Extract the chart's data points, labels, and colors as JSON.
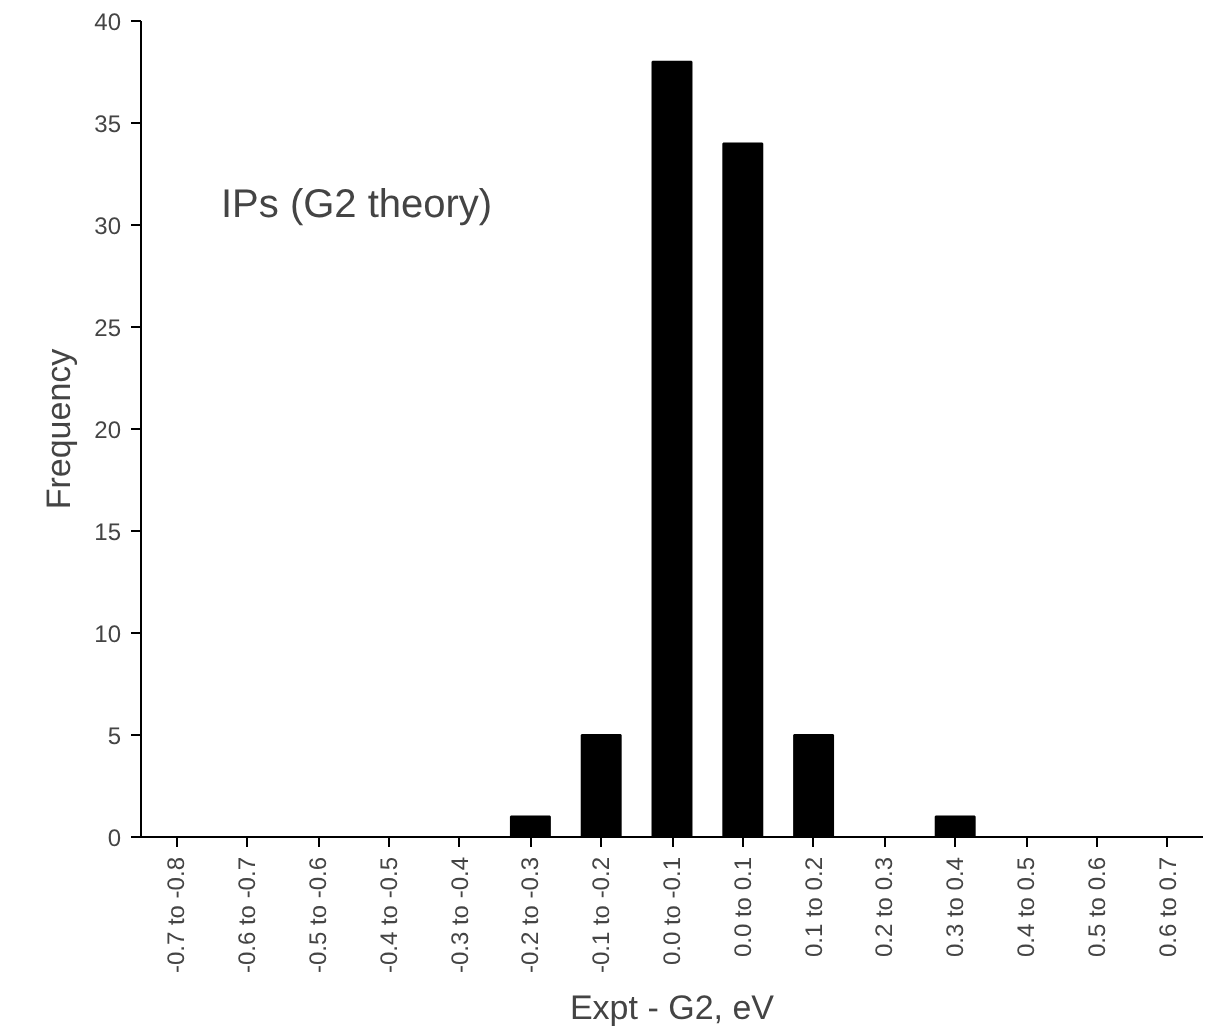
{
  "chart_data": {
    "type": "bar",
    "categories": [
      "-0.7 to -0.8",
      "-0.6 to -0.7",
      "-0.5 to -0.6",
      "-0.4 to -0.5",
      "-0.3 to -0.4",
      "-0.2 to -0.3",
      "-0.1 to -0.2",
      "0.0 to -0.1",
      "0.0 to 0.1",
      "0.1 to 0.2",
      "0.2 to 0.3",
      "0.3 to 0.4",
      "0.4 to 0.5",
      "0.5 to 0.6",
      "0.6 to 0.7"
    ],
    "values": [
      0,
      0,
      0,
      0,
      0,
      1,
      5,
      38,
      34,
      5,
      0,
      1,
      0,
      0,
      0
    ],
    "color": "#000000",
    "xlabel": "Expt - G2, eV",
    "ylabel": "Frequency",
    "ylim": [
      0,
      40
    ],
    "yticks": [
      0,
      5,
      10,
      15,
      20,
      25,
      30,
      35,
      40
    ],
    "annotations": [
      "IPs (G2 theory)"
    ]
  }
}
